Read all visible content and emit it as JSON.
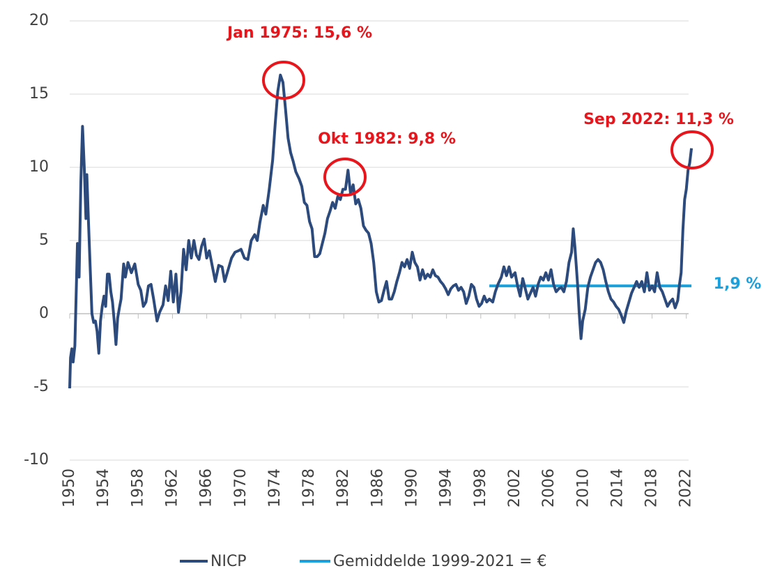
{
  "chart_data": {
    "type": "line",
    "x": [
      1950.0,
      1950.1,
      1950.25,
      1950.4,
      1950.6,
      1950.8,
      1950.9,
      1951.1,
      1951.3,
      1951.5,
      1951.7,
      1951.9,
      1952.0,
      1952.2,
      1952.4,
      1952.6,
      1952.8,
      1953.0,
      1953.2,
      1953.4,
      1953.6,
      1953.8,
      1954.0,
      1954.2,
      1954.4,
      1954.6,
      1954.8,
      1955.0,
      1955.2,
      1955.4,
      1955.6,
      1955.8,
      1956.0,
      1956.3,
      1956.5,
      1956.8,
      1957.2,
      1957.6,
      1958.0,
      1958.3,
      1958.6,
      1958.9,
      1959.2,
      1959.5,
      1959.8,
      1960.2,
      1960.5,
      1960.9,
      1961.2,
      1961.5,
      1961.8,
      1962.1,
      1962.4,
      1962.7,
      1963.0,
      1963.3,
      1963.6,
      1963.9,
      1964.2,
      1964.5,
      1964.8,
      1965.1,
      1965.4,
      1965.7,
      1966.0,
      1966.3,
      1966.7,
      1967.0,
      1967.4,
      1967.8,
      1968.1,
      1968.5,
      1968.9,
      1969.3,
      1969.7,
      1970.0,
      1970.4,
      1970.8,
      1971.2,
      1971.6,
      1971.9,
      1972.2,
      1972.6,
      1972.9,
      1973.3,
      1973.7,
      1974.0,
      1974.3,
      1974.6,
      1974.9,
      1975.2,
      1975.5,
      1975.8,
      1976.1,
      1976.4,
      1976.8,
      1977.1,
      1977.4,
      1977.7,
      1978.0,
      1978.3,
      1978.6,
      1978.9,
      1979.2,
      1979.5,
      1979.8,
      1980.1,
      1980.4,
      1980.7,
      1981.0,
      1981.3,
      1981.6,
      1981.9,
      1982.2,
      1982.5,
      1982.8,
      1983.1,
      1983.4,
      1983.7,
      1984.0,
      1984.3,
      1984.6,
      1984.9,
      1985.2,
      1985.5,
      1985.8,
      1986.1,
      1986.4,
      1986.7,
      1987.0,
      1987.3,
      1987.6,
      1987.9,
      1988.2,
      1988.5,
      1988.8,
      1989.1,
      1989.4,
      1989.7,
      1990.0,
      1990.3,
      1990.6,
      1990.9,
      1991.2,
      1991.5,
      1991.8,
      1992.1,
      1992.4,
      1992.7,
      1993.0,
      1993.3,
      1993.6,
      1993.9,
      1994.2,
      1994.5,
      1994.8,
      1995.1,
      1995.4,
      1995.7,
      1996.0,
      1996.3,
      1996.6,
      1996.9,
      1997.2,
      1997.5,
      1997.8,
      1998.1,
      1998.4,
      1998.7,
      1999.0,
      1999.4,
      1999.7,
      2000.0,
      2000.4,
      2000.7,
      2001.0,
      2001.3,
      2001.6,
      2002.0,
      2002.3,
      2002.6,
      2002.9,
      2003.2,
      2003.5,
      2003.8,
      2004.1,
      2004.4,
      2004.7,
      2005.0,
      2005.3,
      2005.6,
      2005.9,
      2006.2,
      2006.5,
      2006.8,
      2007.1,
      2007.4,
      2007.7,
      2008.0,
      2008.3,
      2008.6,
      2008.8,
      2009.0,
      2009.3,
      2009.5,
      2009.7,
      2009.9,
      2010.2,
      2010.5,
      2010.8,
      2011.1,
      2011.4,
      2011.7,
      2012.0,
      2012.3,
      2012.6,
      2012.9,
      2013.2,
      2013.5,
      2013.8,
      2014.1,
      2014.4,
      2014.7,
      2015.0,
      2015.3,
      2015.6,
      2015.9,
      2016.2,
      2016.5,
      2016.8,
      2017.1,
      2017.4,
      2017.7,
      2018.0,
      2018.3,
      2018.6,
      2018.9,
      2019.2,
      2019.5,
      2019.8,
      2020.1,
      2020.4,
      2020.7,
      2021.0,
      2021.2,
      2021.4,
      2021.6,
      2021.8,
      2022.0,
      2022.2,
      2022.4,
      2022.6
    ],
    "series": [
      {
        "name": "NICP",
        "color": "#2c4a7c",
        "values": [
          -5.1,
          -3,
          -2.4,
          -3.3,
          -2.2,
          2.3,
          4.8,
          2.5,
          9,
          12.8,
          10,
          6.5,
          9.5,
          6.2,
          3,
          0,
          -0.6,
          -0.5,
          -1.2,
          -2.7,
          -0.5,
          0.5,
          1.2,
          0.5,
          2.7,
          2.7,
          1.5,
          0.8,
          -0.5,
          -2.1,
          -0.3,
          0.4,
          1,
          3.4,
          2.5,
          3.5,
          2.8,
          3.4,
          2,
          1.6,
          0.5,
          0.8,
          1.9,
          2.0,
          1,
          -0.5,
          0.1,
          0.6,
          1.9,
          0.9,
          2.9,
          0.8,
          2.7,
          0.1,
          1.5,
          4.4,
          3.0,
          5.0,
          3.8,
          5.0,
          4.0,
          3.7,
          4.6,
          5.1,
          3.8,
          4.3,
          3.1,
          2.2,
          3.3,
          3.2,
          2.2,
          3.0,
          3.8,
          4.2,
          4.3,
          4.4,
          3.8,
          3.7,
          5.0,
          5.4,
          5.0,
          6.2,
          7.4,
          6.8,
          8.5,
          10.5,
          13,
          15.2,
          16.3,
          15.8,
          14.0,
          12,
          11,
          10.4,
          9.7,
          9.2,
          8.7,
          7.6,
          7.4,
          6.3,
          5.8,
          3.9,
          3.9,
          4.1,
          4.8,
          5.5,
          6.5,
          7.0,
          7.6,
          7.2,
          8.0,
          7.8,
          8.5,
          8.5,
          9.8,
          8.2,
          8.8,
          7.5,
          7.8,
          7.2,
          6.0,
          5.7,
          5.5,
          4.8,
          3.5,
          1.5,
          0.8,
          0.9,
          1.6,
          2.2,
          1.0,
          1.0,
          1.5,
          2.2,
          2.8,
          3.5,
          3.2,
          3.7,
          3.1,
          4.2,
          3.5,
          3.2,
          2.3,
          3.0,
          2.4,
          2.7,
          2.5,
          3.0,
          2.6,
          2.5,
          2.2,
          2.0,
          1.7,
          1.3,
          1.7,
          1.9,
          2.0,
          1.6,
          1.8,
          1.5,
          0.7,
          1.2,
          2.0,
          1.8,
          1.0,
          0.5,
          0.7,
          1.2,
          0.8,
          1.0,
          0.8,
          1.5,
          2.0,
          2.5,
          3.2,
          2.6,
          3.2,
          2.5,
          2.8,
          1.9,
          1.2,
          2.4,
          1.7,
          1.0,
          1.4,
          1.8,
          1.2,
          2.0,
          2.5,
          2.3,
          2.8,
          2.3,
          3.0,
          2.0,
          1.5,
          1.7,
          1.8,
          1.5,
          2.2,
          3.5,
          4.2,
          5.8,
          4.5,
          2.0,
          0.0,
          -1.7,
          -0.5,
          0.3,
          1.8,
          2.5,
          3.0,
          3.5,
          3.7,
          3.5,
          3.0,
          2.2,
          1.5,
          1.0,
          0.8,
          0.5,
          0.3,
          -0.1,
          -0.6,
          0.2,
          0.8,
          1.4,
          1.8,
          2.2,
          1.8,
          2.2,
          1.5,
          2.8,
          1.6,
          1.9,
          1.5,
          2.8,
          1.8,
          1.5,
          1.0,
          0.5,
          0.8,
          1.0,
          0.4,
          0.9,
          2.0,
          2.8,
          5.7,
          7.8,
          8.5,
          9.8,
          10.3,
          11.3
        ]
      },
      {
        "name": "Gemiddelde 1999-2021 = €",
        "color": "#1aa0dc",
        "x": [
          1999,
          2022.6
        ],
        "values": [
          1.9,
          1.9
        ],
        "value_labels": [
          null,
          "1,9 %"
        ]
      }
    ],
    "annotations": [
      "Jan 1975: 15,6 %",
      "Okt 1982: 9,8 %",
      "Sep 2022: 11,3 %"
    ],
    "xlim": [
      1950,
      2023
    ],
    "xticks": [
      1950,
      1954,
      1958,
      1962,
      1966,
      1970,
      1974,
      1978,
      1982,
      1986,
      1990,
      1994,
      1998,
      2002,
      2006,
      2010,
      2014,
      2018,
      2022
    ],
    "ylim": [
      -10,
      20
    ],
    "yticks": [
      -10,
      -5,
      0,
      5,
      10,
      15,
      20
    ],
    "grid": true
  }
}
